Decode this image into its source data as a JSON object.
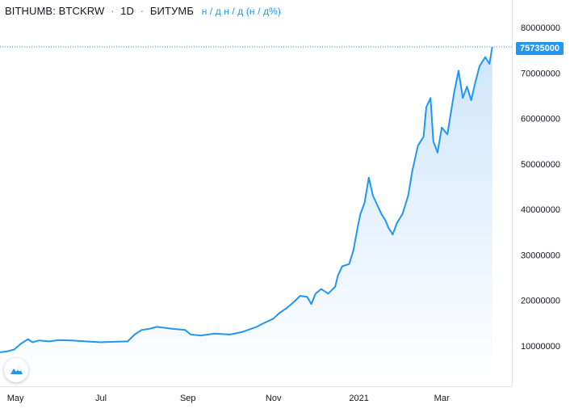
{
  "header": {
    "exchange": "BITHUMB",
    "symbol": "BTCKRW",
    "interval": "1D",
    "source": "БИТУМБ",
    "ohlc_placeholder": "н / д н / д (н / д%)"
  },
  "current_price_label": "75735000",
  "chart_data": {
    "type": "area",
    "x": [
      "2020-04-20",
      "2020-04-25",
      "2020-04-30",
      "2020-05-05",
      "2020-05-10",
      "2020-05-13",
      "2020-05-18",
      "2020-05-25",
      "2020-06-01",
      "2020-06-10",
      "2020-06-20",
      "2020-07-01",
      "2020-07-10",
      "2020-07-20",
      "2020-07-25",
      "2020-07-30",
      "2020-08-05",
      "2020-08-10",
      "2020-08-20",
      "2020-08-30",
      "2020-09-03",
      "2020-09-10",
      "2020-09-20",
      "2020-10-01",
      "2020-10-10",
      "2020-10-20",
      "2020-10-25",
      "2020-11-01",
      "2020-11-05",
      "2020-11-10",
      "2020-11-15",
      "2020-11-20",
      "2020-11-25",
      "2020-11-28",
      "2020-12-01",
      "2020-12-05",
      "2020-12-10",
      "2020-12-15",
      "2020-12-17",
      "2020-12-20",
      "2020-12-25",
      "2020-12-28",
      "2020-12-31",
      "2021-01-02",
      "2021-01-05",
      "2021-01-08",
      "2021-01-11",
      "2021-01-14",
      "2021-01-17",
      "2021-01-20",
      "2021-01-22",
      "2021-01-25",
      "2021-01-28",
      "2021-02-01",
      "2021-02-05",
      "2021-02-08",
      "2021-02-12",
      "2021-02-16",
      "2021-02-18",
      "2021-02-21",
      "2021-02-23",
      "2021-02-26",
      "2021-03-01",
      "2021-03-05",
      "2021-03-10",
      "2021-03-13",
      "2021-03-16",
      "2021-03-19",
      "2021-03-22",
      "2021-03-25",
      "2021-03-28",
      "2021-04-01",
      "2021-04-04",
      "2021-04-06"
    ],
    "values": [
      8600000,
      8800000,
      9200000,
      10500000,
      11500000,
      10800000,
      11200000,
      11000000,
      11300000,
      11200000,
      11000000,
      10800000,
      10900000,
      11000000,
      12500000,
      13500000,
      13800000,
      14200000,
      13800000,
      13500000,
      12500000,
      12300000,
      12700000,
      12500000,
      13100000,
      14200000,
      15000000,
      16000000,
      17200000,
      18200000,
      19500000,
      21000000,
      20800000,
      19200000,
      21500000,
      22500000,
      21500000,
      23000000,
      25500000,
      27500000,
      28000000,
      31000000,
      36000000,
      39000000,
      41500000,
      47000000,
      43000000,
      41000000,
      39000000,
      37500000,
      36000000,
      34500000,
      37000000,
      39000000,
      43000000,
      48500000,
      54000000,
      56000000,
      62500000,
      64500000,
      55000000,
      52500000,
      58000000,
      56500000,
      66000000,
      70500000,
      64500000,
      67000000,
      64000000,
      68000000,
      71500000,
      73500000,
      72000000,
      75735000
    ],
    "title": "",
    "xlabel": "",
    "ylabel": "",
    "ylim": [
      0,
      85000000
    ],
    "xlim": [
      "2020-04-20",
      "2021-04-20"
    ],
    "x_ticks": [
      {
        "date": "2020-05-01",
        "label": "May"
      },
      {
        "date": "2020-07-01",
        "label": "Jul"
      },
      {
        "date": "2020-09-01",
        "label": "Sep"
      },
      {
        "date": "2020-11-01",
        "label": "Nov"
      },
      {
        "date": "2021-01-01",
        "label": "2021"
      },
      {
        "date": "2021-03-01",
        "label": "Mar"
      }
    ],
    "y_ticks": [
      10000000,
      20000000,
      30000000,
      40000000,
      50000000,
      60000000,
      70000000,
      80000000
    ],
    "y_tick_labels": [
      "10000000",
      "20000000",
      "30000000",
      "40000000",
      "50000000",
      "60000000",
      "70000000",
      "80000000"
    ],
    "grid": false,
    "last_value_line": true,
    "colors": {
      "line": "#2196f3",
      "fill_top": "#cfe5fb",
      "fill_bottom": "#ffffff",
      "label_bg": "#2196f3"
    }
  }
}
